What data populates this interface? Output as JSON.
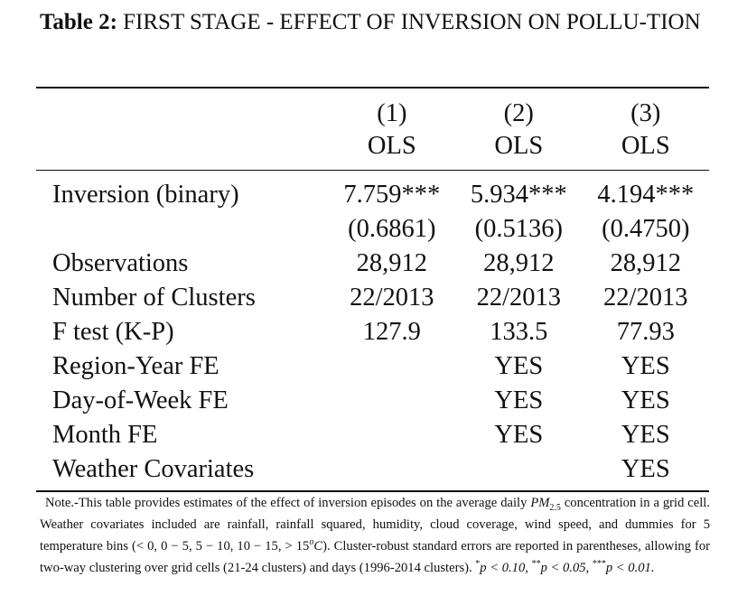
{
  "caption": {
    "label": "Table 2:",
    "title": "FIRST STAGE - EFFECT OF INVERSION ON POLLU-TION"
  },
  "columns": {
    "numbers": [
      "(1)",
      "(2)",
      "(3)"
    ],
    "methods": [
      "OLS",
      "OLS",
      "OLS"
    ]
  },
  "rows": [
    {
      "label": "Inversion (binary)",
      "values": [
        "7.759***",
        "5.934***",
        "4.194***"
      ]
    },
    {
      "label": "",
      "values": [
        "(0.6861)",
        "(0.5136)",
        "(0.4750)"
      ]
    },
    {
      "label": "Observations",
      "values": [
        "28,912",
        "28,912",
        "28,912"
      ]
    },
    {
      "label": "Number of Clusters",
      "values": [
        "22/2013",
        "22/2013",
        "22/2013"
      ]
    },
    {
      "label": "F test (K-P)",
      "values": [
        "127.9",
        "133.5",
        "77.93"
      ]
    },
    {
      "label": "Region-Year FE",
      "values": [
        "",
        "YES",
        "YES"
      ]
    },
    {
      "label": "Day-of-Week FE",
      "values": [
        "",
        "YES",
        "YES"
      ]
    },
    {
      "label": "Month FE",
      "values": [
        "",
        "YES",
        "YES"
      ]
    },
    {
      "label": "Weather Covariates",
      "values": [
        "",
        "",
        "YES"
      ]
    }
  ],
  "note": {
    "part1": "Note.-This table provides estimates of the effect of inversion episodes on the average daily ",
    "pm_symbol": "PM",
    "pm_sub": "2.5",
    "part2": " concentration in a grid cell. Weather covariates included are rainfall, rainfall squared, humidity, cloud coverage, wind speed, and dummies for 5 temperature bins (< 0, 0 − 5, 5 − 10, 10 − 15, > 15",
    "deg": "o",
    "degC": "C",
    "part3": "). Cluster-robust standard errors are reported in parentheses, allowing for two-way clustering over grid cells (21-24 clusters) and days (1996-2014 clusters). ",
    "sig1_mark": "*",
    "sig1_text": "p < 0.10, ",
    "sig2_mark": "**",
    "sig2_text": "p < 0.05, ",
    "sig3_mark": "***",
    "sig3_text": "p < 0.01."
  }
}
